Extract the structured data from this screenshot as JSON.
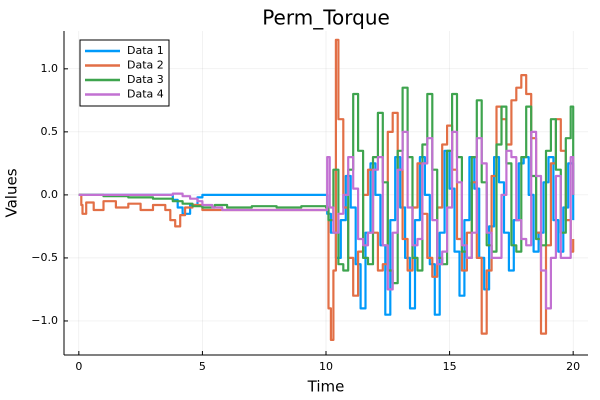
{
  "chart_data": {
    "type": "line",
    "title": "Perm_Torque",
    "xlabel": "Time",
    "ylabel": "Values",
    "xlim": [
      -0.6,
      20.6
    ],
    "ylim": [
      -1.27,
      1.3
    ],
    "xticks": [
      0,
      5,
      10,
      15,
      20
    ],
    "yticks": [
      -1.0,
      -0.5,
      0.0,
      0.5,
      1.0
    ],
    "xtick_labels": [
      "0",
      "5",
      "10",
      "15",
      "20"
    ],
    "ytick_labels": [
      "−1.0",
      "−0.5",
      "0.0",
      "0.5",
      "1.0"
    ],
    "grid": true,
    "legend_position": "top-left",
    "series": [
      {
        "name": "Data 1",
        "color": "#009AFA",
        "x": [
          0,
          3.6,
          3.8,
          4.0,
          4.2,
          4.5,
          4.8,
          5.0,
          6.0,
          8.0,
          10.0,
          10.05,
          10.2,
          10.4,
          10.6,
          10.8,
          11.0,
          11.2,
          11.4,
          11.6,
          11.8,
          12.0,
          12.2,
          12.4,
          12.6,
          12.8,
          13.0,
          13.2,
          13.4,
          13.6,
          13.8,
          14.0,
          14.2,
          14.4,
          14.6,
          14.8,
          15.0,
          15.2,
          15.4,
          15.6,
          15.8,
          16.0,
          16.2,
          16.4,
          16.6,
          16.8,
          17.0,
          17.2,
          17.4,
          17.6,
          17.8,
          18.0,
          18.2,
          18.4,
          18.6,
          18.8,
          19.0,
          19.2,
          19.4,
          19.6,
          19.8,
          20.0
        ],
        "y": [
          0.0,
          0.0,
          -0.04,
          -0.1,
          -0.15,
          -0.08,
          -0.02,
          0.0,
          0.0,
          0.0,
          0.0,
          -0.15,
          -0.3,
          -0.5,
          -0.2,
          0.15,
          -0.1,
          -0.55,
          -0.9,
          -0.3,
          0.25,
          0.0,
          -0.4,
          -0.95,
          -0.2,
          0.3,
          -0.1,
          -0.5,
          -0.9,
          -0.2,
          0.3,
          0.0,
          -0.55,
          -0.95,
          -0.3,
          0.35,
          0.05,
          -0.45,
          -0.8,
          -0.2,
          0.3,
          0.05,
          -0.5,
          -0.75,
          -0.25,
          0.3,
          0.1,
          -0.3,
          -0.6,
          -0.2,
          0.25,
          0.3,
          0.0,
          -0.45,
          -0.3,
          0.1,
          0.3,
          -0.2,
          -0.45,
          -0.1,
          0.25,
          -0.2
        ]
      },
      {
        "name": "Data 2",
        "color": "#E26F46",
        "x": [
          0,
          0.1,
          0.15,
          0.3,
          0.6,
          1.0,
          1.5,
          2.0,
          2.5,
          3.0,
          3.5,
          3.7,
          3.9,
          4.1,
          4.3,
          4.6,
          5.0,
          6.0,
          8.0,
          10.0,
          10.1,
          10.2,
          10.3,
          10.4,
          10.5,
          10.7,
          10.9,
          11.1,
          11.3,
          11.5,
          11.7,
          11.9,
          12.1,
          12.3,
          12.5,
          12.7,
          12.9,
          13.1,
          13.3,
          13.5,
          13.7,
          13.9,
          14.1,
          14.3,
          14.5,
          14.7,
          14.9,
          15.1,
          15.3,
          15.5,
          15.7,
          15.9,
          16.1,
          16.3,
          16.5,
          16.7,
          16.9,
          17.1,
          17.3,
          17.5,
          17.7,
          17.9,
          18.1,
          18.3,
          18.5,
          18.7,
          18.9,
          19.1,
          19.3,
          19.5,
          19.7,
          19.9,
          20.0
        ],
        "y": [
          0.0,
          -0.08,
          -0.15,
          -0.06,
          -0.12,
          -0.05,
          -0.1,
          -0.07,
          -0.12,
          -0.08,
          -0.12,
          -0.2,
          -0.25,
          -0.16,
          -0.1,
          -0.08,
          -0.12,
          -0.12,
          -0.12,
          -0.12,
          -0.9,
          -1.15,
          -0.6,
          1.23,
          0.6,
          -0.1,
          -0.5,
          -0.8,
          -0.45,
          0.0,
          0.2,
          -0.3,
          -0.6,
          -0.55,
          0.5,
          0.65,
          0.2,
          -0.35,
          -0.6,
          -0.1,
          0.25,
          -0.15,
          -0.5,
          -0.65,
          -0.1,
          0.4,
          0.55,
          0.2,
          -0.35,
          -0.6,
          -0.3,
          0.1,
          -0.5,
          -1.1,
          -0.6,
          0.15,
          0.7,
          0.6,
          0.4,
          0.75,
          0.85,
          0.95,
          0.8,
          0.45,
          -0.3,
          -1.1,
          -0.4,
          0.25,
          0.6,
          0.35,
          -0.2,
          -0.45,
          -0.35
        ]
      },
      {
        "name": "Data 3",
        "color": "#3EA44E",
        "x": [
          0,
          1.0,
          2.0,
          3.0,
          3.8,
          4.2,
          4.6,
          5.0,
          5.5,
          6.0,
          7.0,
          8.0,
          9.0,
          10.0,
          10.1,
          10.3,
          10.5,
          10.7,
          10.9,
          11.1,
          11.3,
          11.5,
          11.7,
          11.9,
          12.1,
          12.3,
          12.5,
          12.7,
          12.9,
          13.1,
          13.3,
          13.5,
          13.7,
          13.9,
          14.1,
          14.3,
          14.5,
          14.7,
          14.9,
          15.1,
          15.3,
          15.5,
          15.7,
          15.9,
          16.1,
          16.3,
          16.5,
          16.7,
          16.9,
          17.1,
          17.3,
          17.5,
          17.7,
          17.9,
          18.1,
          18.3,
          18.5,
          18.7,
          18.9,
          19.1,
          19.3,
          19.5,
          19.7,
          19.9,
          20.0
        ],
        "y": [
          0.0,
          -0.01,
          -0.02,
          -0.03,
          -0.05,
          -0.07,
          -0.09,
          -0.1,
          -0.08,
          -0.1,
          -0.09,
          -0.1,
          -0.09,
          -0.1,
          -0.2,
          0.2,
          -0.55,
          -0.6,
          0.2,
          0.8,
          0.35,
          -0.5,
          -0.55,
          0.3,
          0.65,
          0.1,
          -0.6,
          -0.7,
          0.35,
          0.85,
          0.3,
          -0.5,
          -0.6,
          0.4,
          0.8,
          0.2,
          -0.5,
          -0.55,
          0.35,
          0.8,
          0.3,
          -0.45,
          -0.5,
          0.3,
          0.75,
          0.1,
          -0.4,
          -0.45,
          0.4,
          0.7,
          0.25,
          -0.4,
          -0.45,
          0.3,
          0.7,
          0.15,
          -0.35,
          -0.4,
          0.35,
          0.6,
          0.2,
          -0.3,
          0.45,
          0.7,
          0.0
        ]
      },
      {
        "name": "Data 4",
        "color": "#C271D2",
        "x": [
          0,
          0.5,
          1.0,
          1.5,
          2.0,
          2.5,
          3.0,
          3.5,
          3.8,
          4.2,
          4.5,
          4.8,
          5.0,
          5.4,
          5.8,
          6.5,
          7.5,
          8.5,
          9.5,
          10.0,
          10.05,
          10.15,
          10.3,
          10.5,
          10.7,
          10.9,
          11.1,
          11.3,
          11.5,
          11.7,
          11.9,
          12.1,
          12.3,
          12.5,
          12.7,
          12.9,
          13.1,
          13.3,
          13.5,
          13.7,
          13.9,
          14.1,
          14.3,
          14.5,
          14.7,
          14.9,
          15.1,
          15.3,
          15.5,
          15.7,
          15.9,
          16.1,
          16.3,
          16.5,
          16.7,
          16.9,
          17.1,
          17.3,
          17.5,
          17.7,
          17.9,
          18.1,
          18.3,
          18.5,
          18.7,
          18.9,
          19.1,
          19.3,
          19.5,
          19.7,
          19.9,
          20.0
        ],
        "y": [
          0.0,
          0.0,
          0.0,
          0.0,
          0.0,
          0.0,
          0.0,
          0.0,
          0.01,
          -0.01,
          -0.03,
          -0.05,
          -0.08,
          -0.1,
          -0.12,
          -0.12,
          -0.12,
          -0.12,
          -0.12,
          -0.12,
          0.3,
          -0.1,
          -0.3,
          -0.15,
          0.0,
          0.3,
          0.05,
          -0.35,
          -0.4,
          -0.3,
          0.2,
          0.3,
          -0.4,
          -0.75,
          -0.3,
          0.2,
          0.5,
          -0.1,
          -0.4,
          -0.35,
          0.25,
          0.45,
          -0.2,
          -0.55,
          -0.45,
          -0.1,
          0.5,
          0.1,
          -0.4,
          -0.5,
          -0.3,
          0.45,
          0.25,
          -0.3,
          -0.5,
          -0.5,
          0.0,
          0.35,
          0.3,
          -0.2,
          -0.35,
          -0.4,
          0.5,
          0.15,
          -0.6,
          -0.9,
          -0.5,
          0.15,
          -0.5,
          -0.5,
          0.3,
          0.0
        ]
      }
    ]
  }
}
